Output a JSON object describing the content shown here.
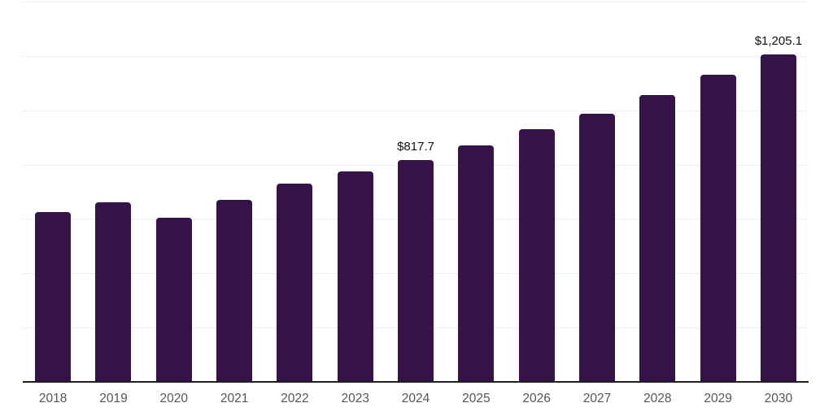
{
  "chart_data": {
    "type": "bar",
    "categories": [
      "2018",
      "2019",
      "2020",
      "2021",
      "2022",
      "2023",
      "2024",
      "2025",
      "2026",
      "2027",
      "2028",
      "2029",
      "2030"
    ],
    "values": [
      625,
      662,
      604,
      670,
      730,
      774,
      817.7,
      870,
      929,
      987,
      1055,
      1130,
      1205.1
    ],
    "data_labels": [
      null,
      null,
      null,
      null,
      null,
      null,
      "$817.7",
      null,
      null,
      null,
      null,
      null,
      "$1,205.1"
    ],
    "ylim": [
      0,
      1400
    ],
    "gridline_step": 200,
    "grid": true,
    "y_axis_tick_labels_shown": false,
    "legend": "none",
    "colors": {
      "bar": "#36124B",
      "gridline": "#f0f0f0",
      "axis_line": "#1f1f1f",
      "tick_label": "#555555",
      "data_label": "#111111",
      "background": "#ffffff"
    }
  }
}
